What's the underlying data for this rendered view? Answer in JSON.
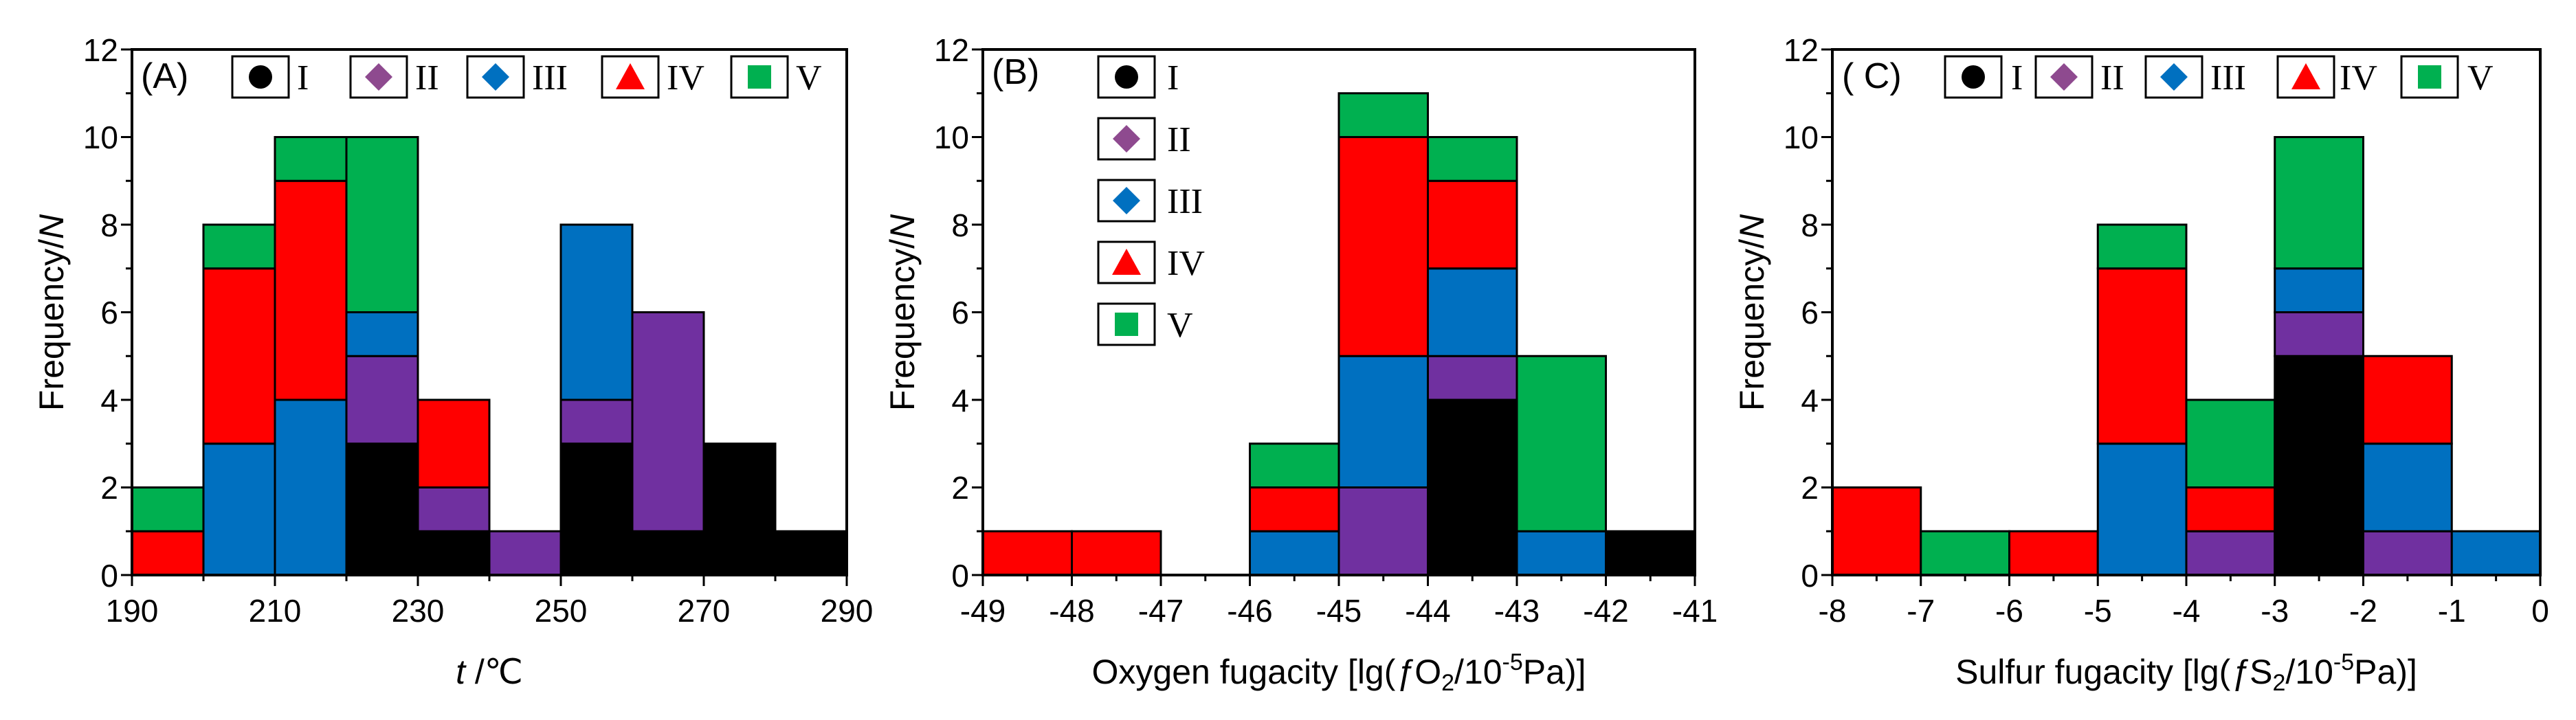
{
  "colors": {
    "I": "#000000",
    "II": "#7030a0",
    "III": "#0070c0",
    "IV": "#ff0000",
    "V": "#00b050"
  },
  "legend_items": [
    {
      "key": "I",
      "label": "I",
      "marker": "circle"
    },
    {
      "key": "II",
      "label": "II",
      "marker": "diamond"
    },
    {
      "key": "III",
      "label": "III",
      "marker": "diamond"
    },
    {
      "key": "IV",
      "label": "IV",
      "marker": "triangle"
    },
    {
      "key": "V",
      "label": "V",
      "marker": "square"
    }
  ],
  "chart_data": [
    {
      "type": "bar",
      "panel_label": "(A)",
      "xlabel_italic": "t",
      "xlabel_rest": " /℃",
      "ylabel": "Frequency/",
      "ylabel_italic": "N",
      "xlim": [
        190,
        290
      ],
      "ylim": [
        0,
        12
      ],
      "x_ticks": [
        "190",
        "210",
        "230",
        "250",
        "270",
        "290"
      ],
      "y_ticks": [
        "0",
        "2",
        "4",
        "6",
        "8",
        "10",
        "12"
      ],
      "bin_width": 10,
      "bins": [
        {
          "x0": 190,
          "stack": [
            [
              "IV",
              1
            ],
            [
              "V",
              1
            ]
          ]
        },
        {
          "x0": 200,
          "stack": [
            [
              "III",
              3
            ],
            [
              "IV",
              4
            ],
            [
              "V",
              1
            ]
          ]
        },
        {
          "x0": 210,
          "stack": [
            [
              "III",
              4
            ],
            [
              "IV",
              5
            ],
            [
              "V",
              1
            ]
          ]
        },
        {
          "x0": 220,
          "stack": [
            [
              "I",
              3
            ],
            [
              "II",
              2
            ],
            [
              "III",
              1
            ],
            [
              "V",
              4
            ]
          ]
        },
        {
          "x0": 230,
          "stack": [
            [
              "I",
              1
            ],
            [
              "II",
              1
            ],
            [
              "IV",
              2
            ]
          ]
        },
        {
          "x0": 240,
          "stack": [
            [
              "II",
              1
            ]
          ]
        },
        {
          "x0": 250,
          "stack": [
            [
              "I",
              3
            ],
            [
              "II",
              1
            ],
            [
              "III",
              4
            ]
          ]
        },
        {
          "x0": 260,
          "stack": [
            [
              "I",
              1
            ],
            [
              "II",
              5
            ]
          ]
        },
        {
          "x0": 270,
          "stack": [
            [
              "I",
              3
            ]
          ]
        },
        {
          "x0": 280,
          "stack": [
            [
              "I",
              1
            ]
          ]
        }
      ],
      "legend_layout": "horizontal-top"
    },
    {
      "type": "bar",
      "panel_label": "(B)",
      "xlabel_pre": "Oxygen fugacity [lg(",
      "xlabel_f": "ƒ",
      "xlabel_mid": "O",
      "xlabel_sub": "2",
      "xlabel_slash": "/10",
      "xlabel_sup": "-5",
      "xlabel_post": "Pa)]",
      "ylabel": "Frequency/",
      "ylabel_italic": "N",
      "xlim": [
        -49,
        -41
      ],
      "ylim": [
        0,
        12
      ],
      "x_ticks": [
        "-49",
        "-48",
        "-47",
        "-46",
        "-45",
        "-44",
        "-43",
        "-42",
        "-41"
      ],
      "y_ticks": [
        "0",
        "2",
        "4",
        "6",
        "8",
        "10",
        "12"
      ],
      "bin_width": 1,
      "bins": [
        {
          "x0": -49,
          "stack": [
            [
              "IV",
              1
            ]
          ]
        },
        {
          "x0": -48,
          "stack": [
            [
              "IV",
              1
            ]
          ]
        },
        {
          "x0": -46,
          "stack": [
            [
              "III",
              1
            ],
            [
              "IV",
              1
            ],
            [
              "V",
              1
            ]
          ]
        },
        {
          "x0": -45,
          "stack": [
            [
              "II",
              2
            ],
            [
              "III",
              3
            ],
            [
              "IV",
              5
            ],
            [
              "V",
              1
            ]
          ]
        },
        {
          "x0": -44,
          "stack": [
            [
              "I",
              4
            ],
            [
              "II",
              1
            ],
            [
              "III",
              2
            ],
            [
              "IV",
              2
            ],
            [
              "V",
              1
            ]
          ]
        },
        {
          "x0": -43,
          "stack": [
            [
              "III",
              1
            ],
            [
              "V",
              4
            ]
          ]
        },
        {
          "x0": -42,
          "stack": [
            [
              "I",
              1
            ]
          ]
        }
      ],
      "legend_layout": "vertical-left"
    },
    {
      "type": "bar",
      "panel_label": "( C)",
      "xlabel_pre": "Sulfur fugacity [lg(",
      "xlabel_f": "ƒ",
      "xlabel_mid": "S",
      "xlabel_sub": "2",
      "xlabel_slash": "/10",
      "xlabel_sup": "-5",
      "xlabel_post": "Pa)]",
      "ylabel": "Frequency/",
      "ylabel_italic": "N",
      "xlim": [
        -8,
        0
      ],
      "ylim": [
        0,
        12
      ],
      "x_ticks": [
        "-8",
        "-7",
        "-6",
        "-5",
        "-4",
        "-3",
        "-2",
        "-1",
        "0"
      ],
      "y_ticks": [
        "0",
        "2",
        "4",
        "6",
        "8",
        "10",
        "12"
      ],
      "bin_width": 1,
      "bins": [
        {
          "x0": -8,
          "stack": [
            [
              "IV",
              2
            ]
          ]
        },
        {
          "x0": -7,
          "stack": [
            [
              "V",
              1
            ]
          ]
        },
        {
          "x0": -6,
          "stack": [
            [
              "IV",
              1
            ]
          ]
        },
        {
          "x0": -5,
          "stack": [
            [
              "III",
              3
            ],
            [
              "IV",
              4
            ],
            [
              "V",
              1
            ]
          ]
        },
        {
          "x0": -4,
          "stack": [
            [
              "II",
              1
            ],
            [
              "IV",
              1
            ],
            [
              "V",
              2
            ]
          ]
        },
        {
          "x0": -3,
          "stack": [
            [
              "I",
              5
            ],
            [
              "II",
              1
            ],
            [
              "III",
              1
            ],
            [
              "V",
              3
            ]
          ]
        },
        {
          "x0": -2,
          "stack": [
            [
              "II",
              1
            ],
            [
              "III",
              2
            ],
            [
              "IV",
              2
            ]
          ]
        },
        {
          "x0": -1,
          "stack": [
            [
              "III",
              1
            ]
          ]
        }
      ],
      "legend_layout": "horizontal-top"
    }
  ]
}
